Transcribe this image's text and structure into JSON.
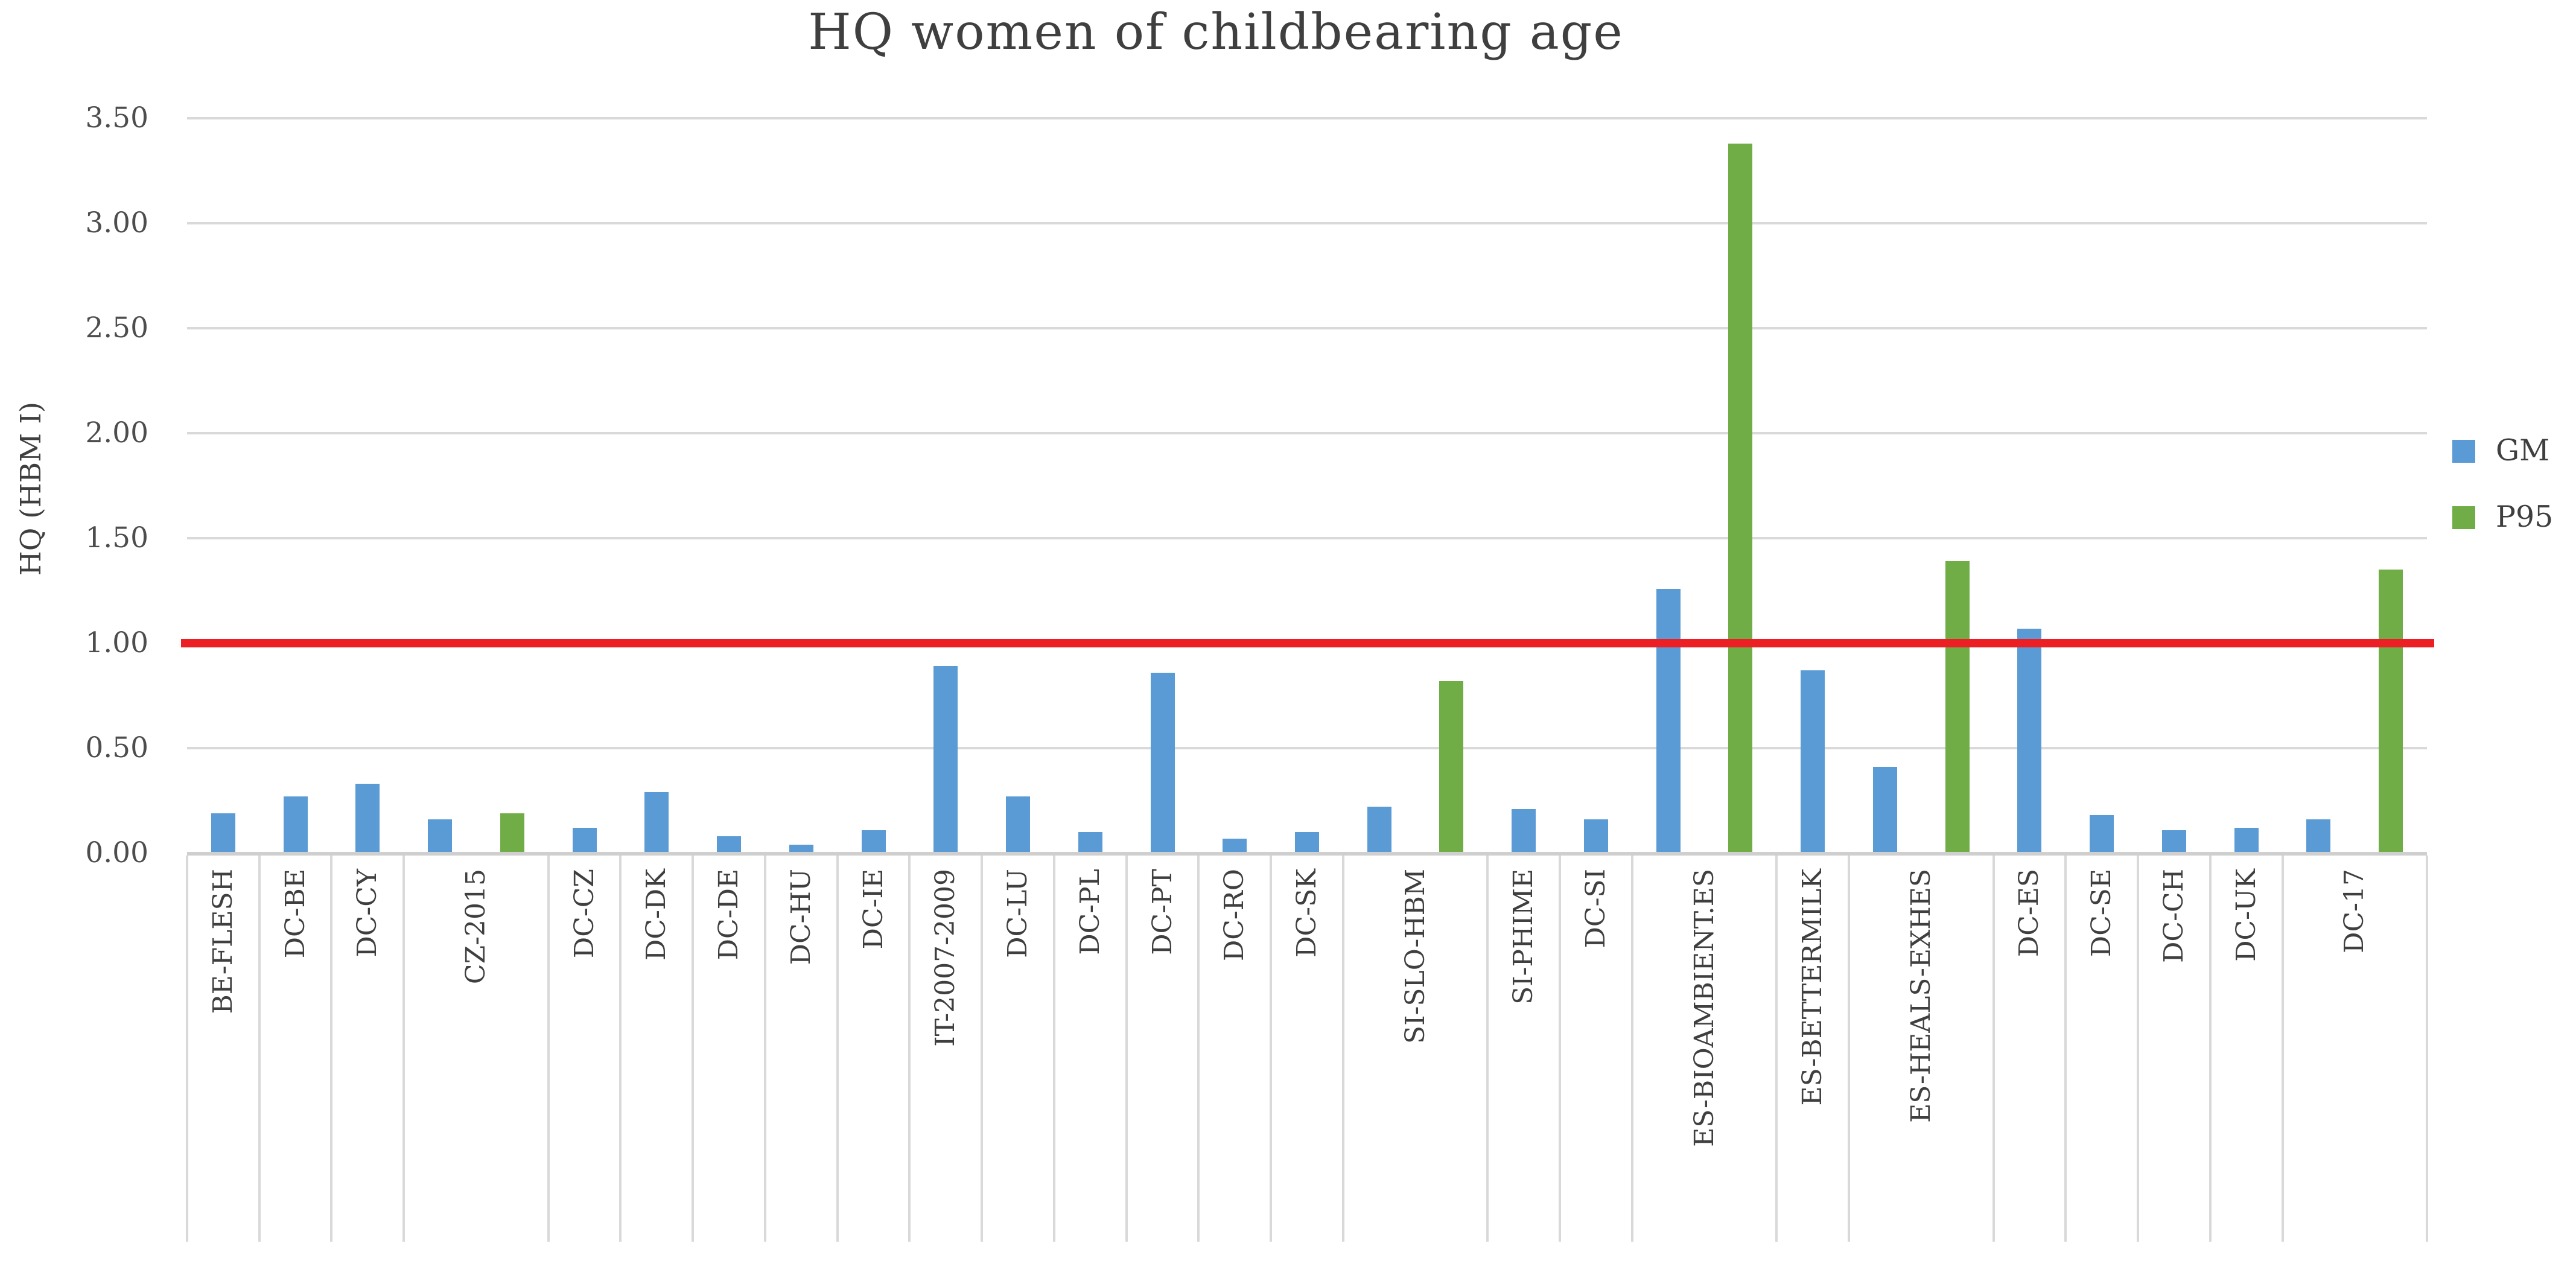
{
  "chart_data": {
    "type": "bar",
    "title": "HQ women of childbearing age",
    "ylabel": "HQ (HBM I)",
    "xlabel": "",
    "ylim": [
      0,
      3.5
    ],
    "y_ticks": [
      "0.00",
      "0.50",
      "1.00",
      "1.50",
      "2.00",
      "2.50",
      "3.00",
      "3.50"
    ],
    "grid": "horizontal",
    "reference_line": {
      "value": 1.0,
      "color": "#ec2024"
    },
    "series_names": [
      "GM",
      "P95"
    ],
    "categories": [
      {
        "label": "BE-FLESH",
        "gm": 0.19,
        "p95": null
      },
      {
        "label": "DC-BE",
        "gm": 0.27,
        "p95": null
      },
      {
        "label": "DC-CY",
        "gm": 0.33,
        "p95": null
      },
      {
        "label": "CZ-2015",
        "gm": 0.16,
        "p95": 0.19
      },
      {
        "label": "DC-CZ",
        "gm": 0.12,
        "p95": null
      },
      {
        "label": "DC-DK",
        "gm": 0.29,
        "p95": null
      },
      {
        "label": "DC-DE",
        "gm": 0.08,
        "p95": null
      },
      {
        "label": "DC-HU",
        "gm": 0.04,
        "p95": null
      },
      {
        "label": "DC-IE",
        "gm": 0.11,
        "p95": null
      },
      {
        "label": "IT-2007-2009",
        "gm": 0.89,
        "p95": null
      },
      {
        "label": "DC-LU",
        "gm": 0.27,
        "p95": null
      },
      {
        "label": "DC-PL",
        "gm": 0.1,
        "p95": null
      },
      {
        "label": "DC-PT",
        "gm": 0.86,
        "p95": null
      },
      {
        "label": "DC-RO",
        "gm": 0.07,
        "p95": null
      },
      {
        "label": "DC-SK",
        "gm": 0.1,
        "p95": null
      },
      {
        "label": "SI-SLO-HBM",
        "gm": 0.22,
        "p95": 0.82
      },
      {
        "label": "SI-PHIME",
        "gm": 0.21,
        "p95": null
      },
      {
        "label": "DC-SI",
        "gm": 0.16,
        "p95": null
      },
      {
        "label": "ES-BIOAMBIENT.ES",
        "gm": 1.26,
        "p95": 3.38
      },
      {
        "label": "ES-BETTERMILK",
        "gm": 0.87,
        "p95": null
      },
      {
        "label": "ES-HEALS-EXHES",
        "gm": 0.41,
        "p95": 1.39
      },
      {
        "label": "DC-ES",
        "gm": 1.07,
        "p95": null
      },
      {
        "label": "DC-SE",
        "gm": 0.18,
        "p95": null
      },
      {
        "label": "DC-CH",
        "gm": 0.11,
        "p95": null
      },
      {
        "label": "DC-UK",
        "gm": 0.12,
        "p95": null
      },
      {
        "label": "DC-17",
        "gm": 0.16,
        "p95": 1.35
      }
    ],
    "legend": {
      "position": "right",
      "entries": [
        {
          "label": "GM",
          "color": "#5b9bd5"
        },
        {
          "label": "P95",
          "color": "#70ad47"
        }
      ]
    },
    "colors": {
      "gm_bar": "#5b9bd5",
      "p95_bar": "#70ad47",
      "reference_line": "#ec2024",
      "gridline": "#d9d9d9",
      "axis_line": "#cfcfcf",
      "text": "#3f3f3f"
    }
  }
}
